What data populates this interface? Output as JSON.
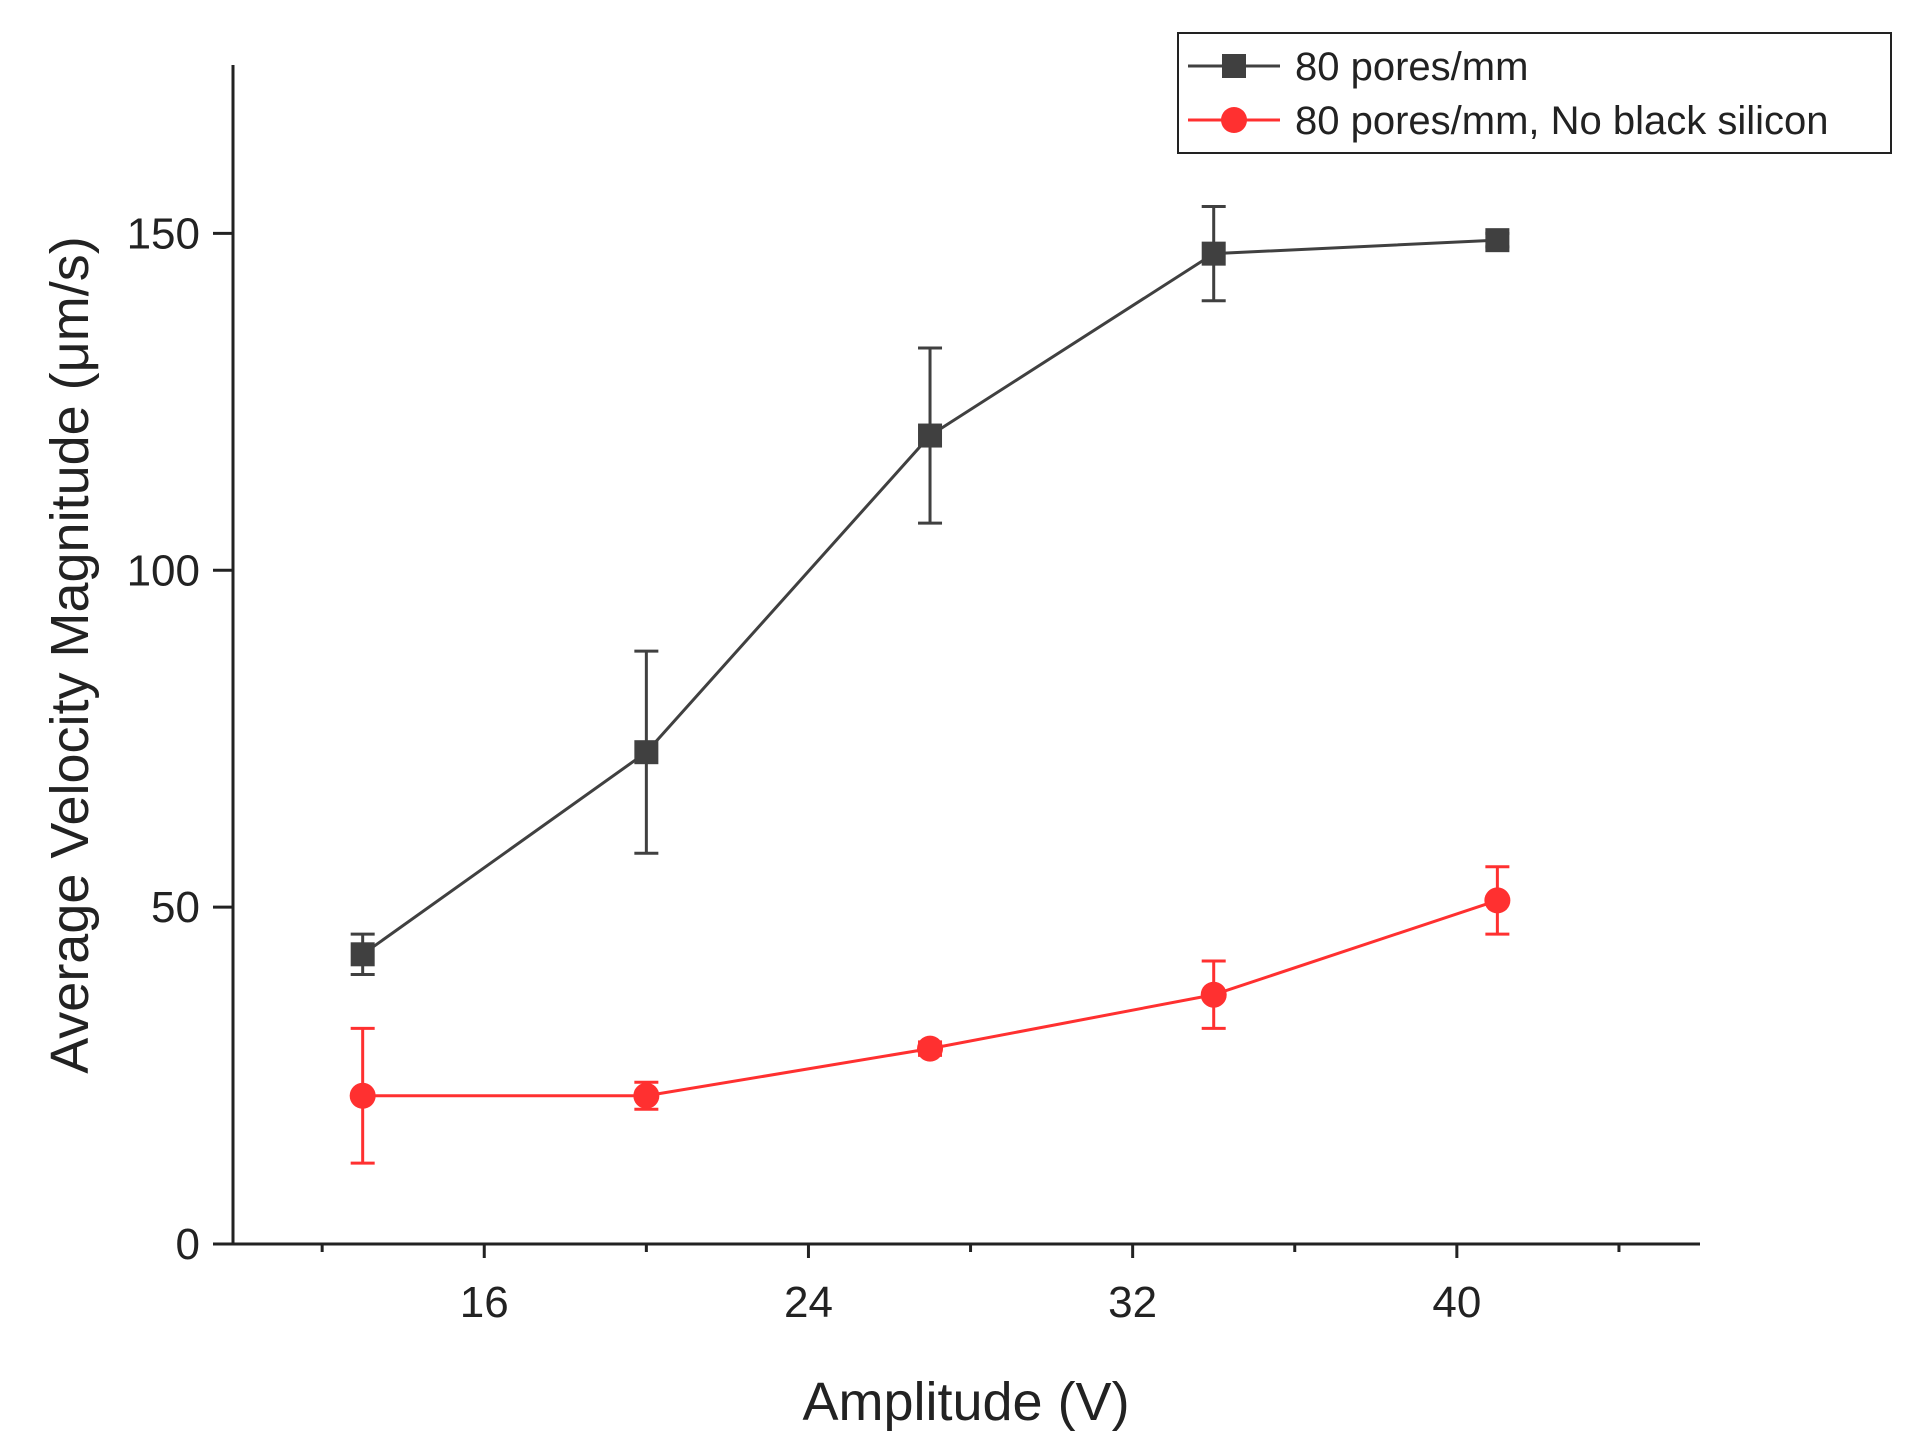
{
  "chart_data": {
    "type": "line",
    "title": "",
    "xlabel": "Amplitude (V)",
    "ylabel": "Average Velocity Magnitude (μm/s)",
    "xlim": [
      9.8,
      46
    ],
    "ylim": [
      0,
      175
    ],
    "xticks": [
      16,
      24,
      32,
      40
    ],
    "xtick_labels": [
      "16",
      "24",
      "32",
      "40"
    ],
    "xminor_ticks": [
      12,
      20,
      28,
      36,
      44
    ],
    "yticks": [
      0,
      50,
      100,
      150
    ],
    "ytick_labels": [
      "0",
      "50",
      "100",
      "150"
    ],
    "grid": false,
    "legend_position": "top-right",
    "series": [
      {
        "name": "80 pores/mm",
        "color": "#404040",
        "marker": "square",
        "x": [
          13,
          20,
          27,
          34,
          41
        ],
        "y": [
          43,
          73,
          120,
          147,
          149
        ],
        "err": [
          3,
          15,
          13,
          7,
          1
        ]
      },
      {
        "name": "80 pores/mm, No black silicon",
        "color": "#ff3030",
        "marker": "circle",
        "x": [
          13,
          20,
          27,
          34,
          41
        ],
        "y": [
          22,
          22,
          29,
          37,
          51
        ],
        "err": [
          10,
          2,
          1,
          5,
          5
        ]
      }
    ]
  }
}
